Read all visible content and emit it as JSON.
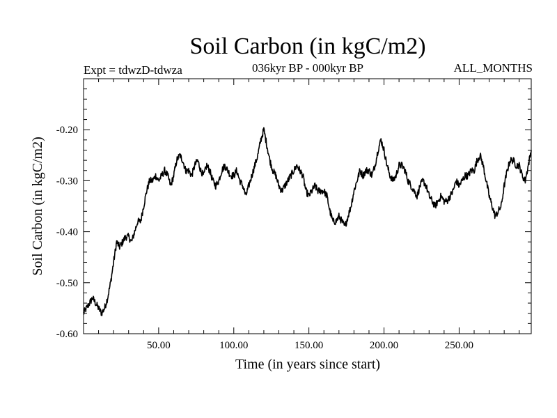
{
  "chart_data": {
    "type": "line",
    "title": "Soil Carbon (in kgC/m2)",
    "subtitle_left": "Expt = tdwzD-tdwza",
    "subtitle_center": "036kyr BP - 000kyr BP",
    "subtitle_right": "ALL_MONTHS",
    "xlabel": "Time (in years since start)",
    "ylabel": "Soil Carbon (in kgC/m2)",
    "xlim": [
      0,
      298
    ],
    "ylim": [
      -0.6,
      -0.1
    ],
    "x_ticks": [
      50,
      100,
      150,
      200,
      250
    ],
    "x_tick_labels": [
      "50.00",
      "100.00",
      "150.00",
      "200.00",
      "250.00"
    ],
    "y_ticks": [
      -0.6,
      -0.5,
      -0.4,
      -0.3,
      -0.2
    ],
    "y_tick_labels": [
      "-0.60",
      "-0.50",
      "-0.40",
      "-0.30",
      "-0.20"
    ],
    "series": [
      {
        "name": "Soil Carbon",
        "color": "#000000",
        "x": [
          0,
          2,
          4,
          6,
          8,
          10,
          12,
          14,
          16,
          18,
          20,
          22,
          24,
          26,
          28,
          30,
          32,
          34,
          36,
          38,
          40,
          42,
          44,
          46,
          48,
          50,
          52,
          54,
          56,
          58,
          60,
          62,
          64,
          66,
          68,
          70,
          72,
          74,
          76,
          78,
          80,
          82,
          84,
          86,
          88,
          90,
          92,
          94,
          96,
          98,
          100,
          102,
          104,
          106,
          108,
          110,
          112,
          114,
          116,
          118,
          120,
          122,
          124,
          126,
          128,
          130,
          132,
          134,
          136,
          138,
          140,
          142,
          144,
          146,
          148,
          150,
          152,
          154,
          156,
          158,
          160,
          162,
          164,
          166,
          168,
          170,
          172,
          174,
          176,
          178,
          180,
          182,
          184,
          186,
          188,
          190,
          192,
          194,
          196,
          198,
          200,
          202,
          204,
          206,
          208,
          210,
          212,
          214,
          216,
          218,
          220,
          222,
          224,
          226,
          228,
          230,
          232,
          234,
          236,
          238,
          240,
          242,
          244,
          246,
          248,
          250,
          252,
          254,
          256,
          258,
          260,
          262,
          264,
          266,
          268,
          270,
          272,
          274,
          276,
          278,
          280,
          282,
          284,
          286,
          288,
          290,
          292,
          294,
          296,
          298
        ],
        "values": [
          -0.56,
          -0.55,
          -0.54,
          -0.53,
          -0.54,
          -0.55,
          -0.56,
          -0.55,
          -0.53,
          -0.5,
          -0.46,
          -0.42,
          -0.43,
          -0.42,
          -0.41,
          -0.41,
          -0.42,
          -0.4,
          -0.38,
          -0.38,
          -0.35,
          -0.32,
          -0.3,
          -0.3,
          -0.29,
          -0.3,
          -0.29,
          -0.28,
          -0.29,
          -0.31,
          -0.29,
          -0.26,
          -0.25,
          -0.26,
          -0.28,
          -0.28,
          -0.29,
          -0.27,
          -0.26,
          -0.28,
          -0.29,
          -0.27,
          -0.28,
          -0.3,
          -0.31,
          -0.3,
          -0.28,
          -0.27,
          -0.28,
          -0.29,
          -0.29,
          -0.28,
          -0.3,
          -0.31,
          -0.33,
          -0.31,
          -0.29,
          -0.27,
          -0.25,
          -0.22,
          -0.2,
          -0.23,
          -0.26,
          -0.28,
          -0.29,
          -0.31,
          -0.32,
          -0.31,
          -0.3,
          -0.29,
          -0.28,
          -0.27,
          -0.28,
          -0.29,
          -0.32,
          -0.33,
          -0.32,
          -0.31,
          -0.32,
          -0.32,
          -0.32,
          -0.33,
          -0.36,
          -0.38,
          -0.38,
          -0.37,
          -0.38,
          -0.39,
          -0.37,
          -0.35,
          -0.32,
          -0.3,
          -0.28,
          -0.29,
          -0.28,
          -0.28,
          -0.29,
          -0.27,
          -0.24,
          -0.22,
          -0.24,
          -0.27,
          -0.29,
          -0.3,
          -0.29,
          -0.27,
          -0.27,
          -0.28,
          -0.3,
          -0.31,
          -0.32,
          -0.33,
          -0.31,
          -0.3,
          -0.31,
          -0.33,
          -0.34,
          -0.35,
          -0.34,
          -0.33,
          -0.34,
          -0.34,
          -0.33,
          -0.32,
          -0.3,
          -0.31,
          -0.3,
          -0.29,
          -0.29,
          -0.28,
          -0.28,
          -0.26,
          -0.25,
          -0.27,
          -0.3,
          -0.33,
          -0.35,
          -0.37,
          -0.36,
          -0.35,
          -0.31,
          -0.28,
          -0.26,
          -0.26,
          -0.27,
          -0.27,
          -0.29,
          -0.3,
          -0.27,
          -0.24
        ]
      }
    ]
  }
}
